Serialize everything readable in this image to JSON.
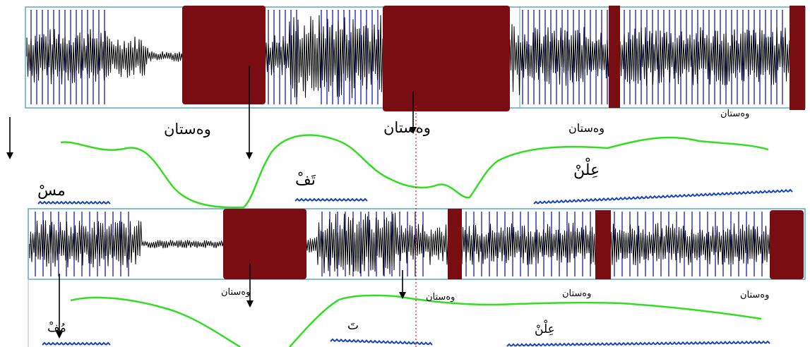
{
  "panel_top": {
    "pause_labels": [
      "وەستان",
      "وەستان",
      "وەستان",
      "وەستان"
    ],
    "words": [
      "مسْ",
      "تَفْ",
      "عِلْنْ"
    ]
  },
  "panel_bottom": {
    "pause_labels": [
      "وەستان",
      "وەستان",
      "وەستان",
      "وەستان"
    ],
    "words": [
      "مُفْ",
      "تَ",
      "عِلْنْ"
    ]
  },
  "colors": {
    "waveform": "#000000",
    "pulse_marks": "#1a1aa8",
    "pause_block": "#7a0d12",
    "pitch_contour": "#33dd22",
    "intensity_marks": "#1744b8",
    "cursor": "#dd2222",
    "frame": "#5fa7c8"
  },
  "icons": [
    "arrow-down-icon"
  ]
}
